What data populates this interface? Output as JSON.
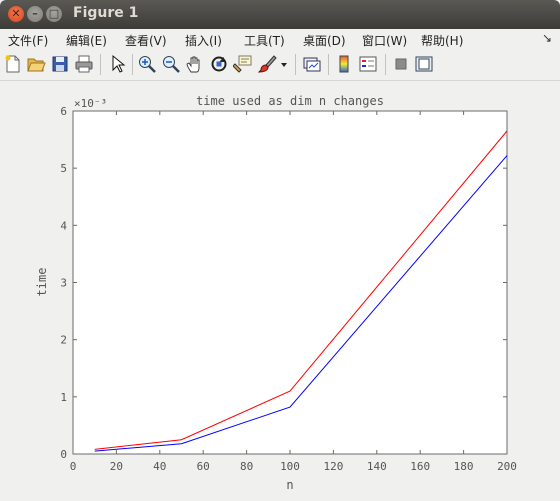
{
  "window": {
    "title": "Figure 1"
  },
  "menu": {
    "items": [
      "文件(F)",
      "编辑(E)",
      "查看(V)",
      "插入(I)",
      "工具(T)",
      "桌面(D)",
      "窗口(W)",
      "帮助(H)"
    ],
    "overflow": "↘"
  },
  "toolbar": {
    "icons": [
      "new-figure-icon",
      "open-file-icon",
      "save-icon",
      "print-icon",
      "pointer-icon",
      "zoom-in-icon",
      "zoom-out-icon",
      "pan-hand-icon",
      "rotate-3d-icon",
      "data-cursor-icon",
      "brush-icon",
      "brush-dropdown-icon",
      "link-plot-icon",
      "colorbar-icon",
      "legend-icon",
      "hide-plot-tools-icon",
      "show-plot-tools-icon"
    ]
  },
  "chart_data": {
    "type": "line",
    "title": "time used as dim n changes",
    "xlabel": "n",
    "ylabel": "time",
    "y_exponent": "×10⁻³",
    "xlim": [
      0,
      200
    ],
    "ylim": [
      0,
      6
    ],
    "xticks": [
      0,
      20,
      40,
      60,
      80,
      100,
      120,
      140,
      160,
      180,
      200
    ],
    "yticks": [
      0,
      1,
      2,
      3,
      4,
      5,
      6
    ],
    "grid": false,
    "series": [
      {
        "color": "#ff0000",
        "x": [
          10,
          50,
          100,
          200
        ],
        "y": [
          0.08,
          0.25,
          1.1,
          5.65
        ]
      },
      {
        "color": "#0000ff",
        "x": [
          10,
          50,
          100,
          200
        ],
        "y": [
          0.05,
          0.18,
          0.82,
          5.22
        ]
      }
    ]
  }
}
